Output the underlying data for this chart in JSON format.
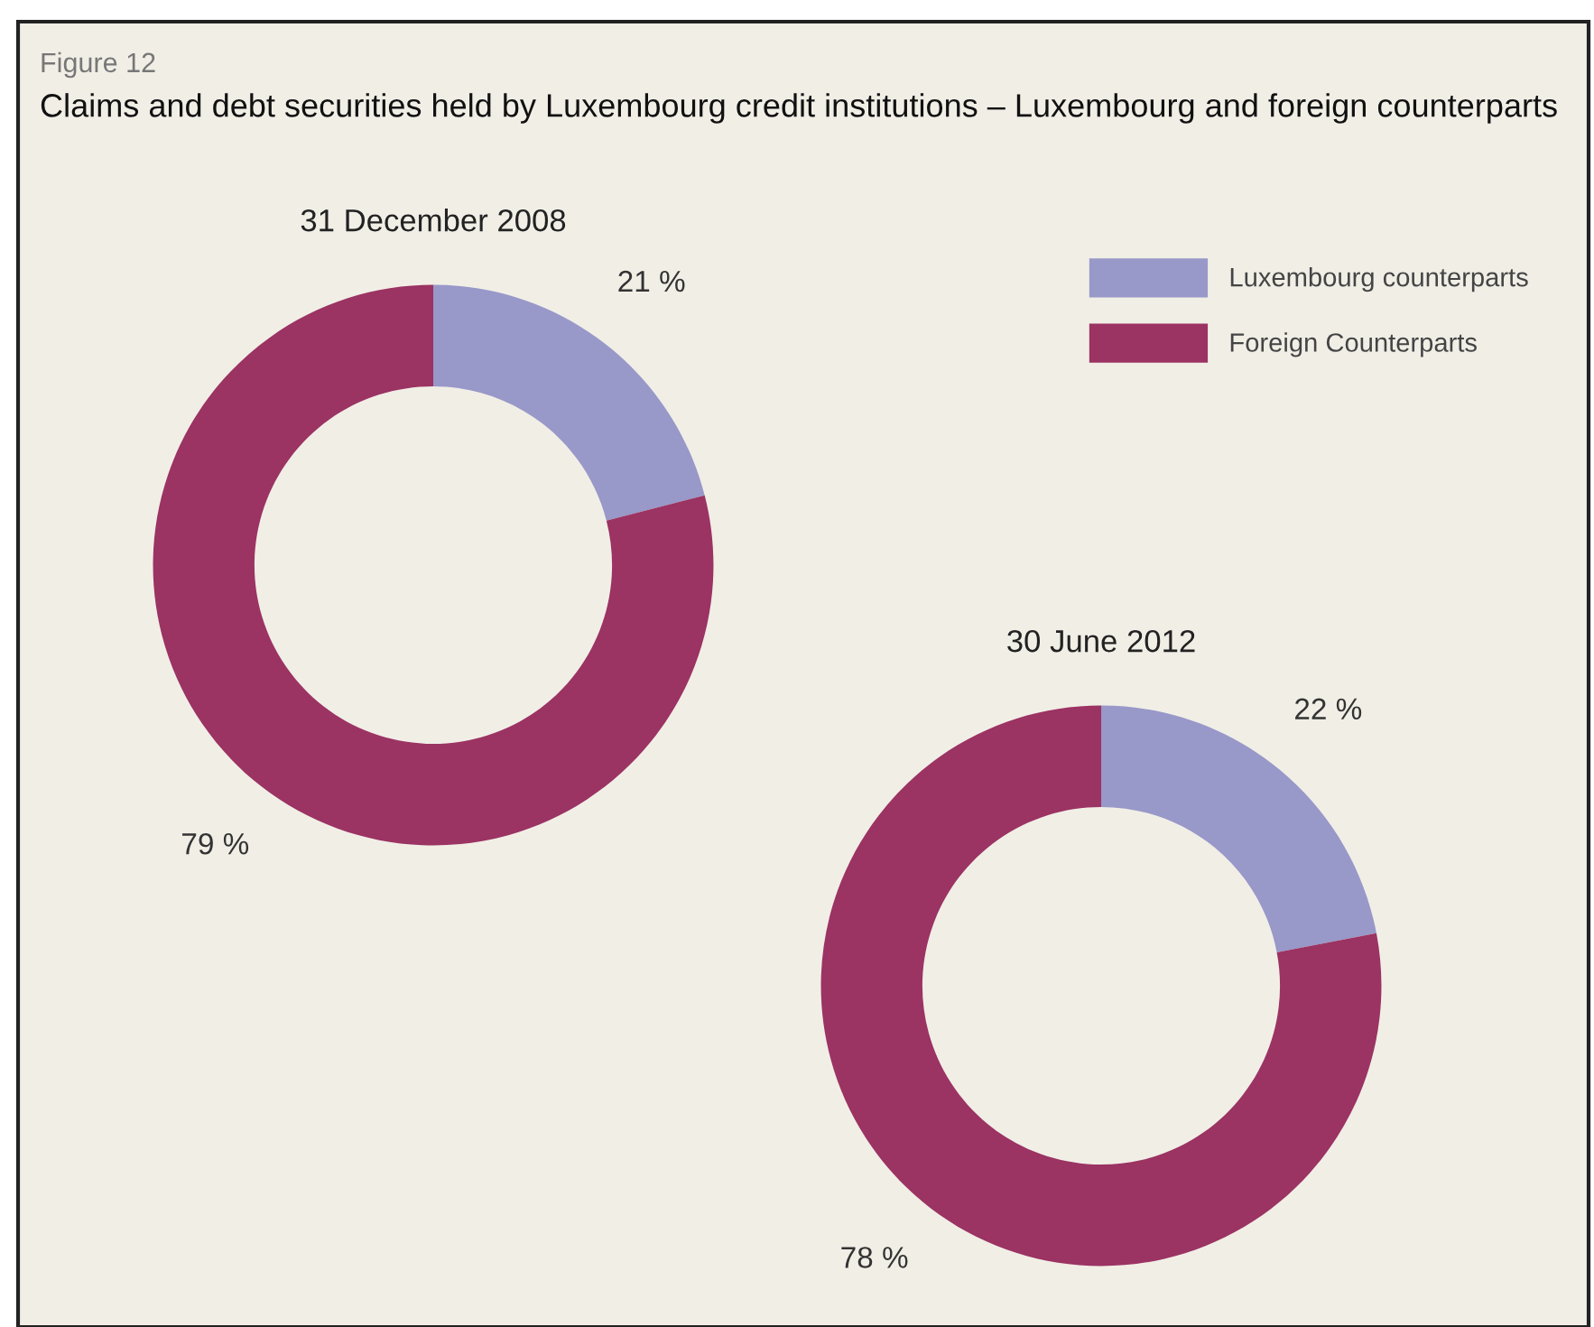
{
  "chart_data": [
    {
      "type": "donut",
      "title": "31 December 2008",
      "annotations": [
        "Figure 12",
        "Claims and debt securities held by Luxembourg credit institutions – Luxembourg and foreign counterparts"
      ],
      "categories": [
        "Luxembourg counterparts",
        "Foreign Counterparts"
      ],
      "values": [
        21,
        79
      ],
      "colors": [
        "#9898c9",
        "#9b3363"
      ],
      "value_labels": [
        "21 %",
        "79 %"
      ],
      "legend": "top right"
    },
    {
      "type": "donut",
      "title": "30 June 2012",
      "categories": [
        null,
        null
      ],
      "values": [
        22,
        78
      ],
      "colors": [
        "#9898c9",
        "#9b3363"
      ],
      "value_labels": [
        "22 %",
        "78 %"
      ]
    }
  ]
}
